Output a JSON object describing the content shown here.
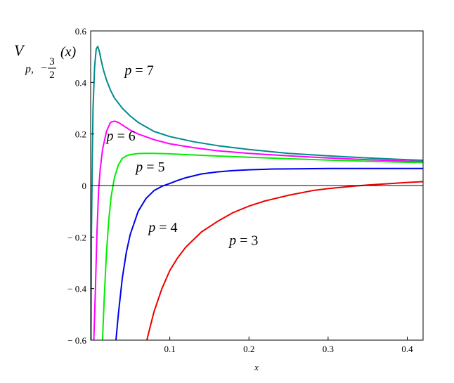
{
  "chart_data": {
    "type": "line",
    "title": "",
    "xlabel": "x",
    "ylabel": {
      "main": "V",
      "sub_p": "p,",
      "sub_sign": "−",
      "sub_num": "3",
      "sub_den": "2",
      "arg": "(x)"
    },
    "xlim": [
      0,
      0.42
    ],
    "ylim": [
      -0.6,
      0.6
    ],
    "grid": false,
    "legend": "inline curve labels",
    "x_ticks": [
      {
        "value": 0.1,
        "label": "0.1"
      },
      {
        "value": 0.2,
        "label": "0.2"
      },
      {
        "value": 0.3,
        "label": "0.3"
      },
      {
        "value": 0.4,
        "label": "0.4"
      }
    ],
    "y_ticks": [
      {
        "value": 0.6,
        "label": "0.6"
      },
      {
        "value": 0.4,
        "label": "0.4"
      },
      {
        "value": 0.2,
        "label": "0.2"
      },
      {
        "value": 0,
        "label": "0"
      },
      {
        "value": -0.2,
        "label": "− 0.2"
      },
      {
        "value": -0.4,
        "label": "− 0.4"
      },
      {
        "value": -0.6,
        "label": "− 0.6"
      }
    ],
    "zero_line": true,
    "series": [
      {
        "name": "p = 7",
        "color": "#008B8B",
        "x": [
          0.0005,
          0.001,
          0.002,
          0.003,
          0.005,
          0.007,
          0.009,
          0.011,
          0.013,
          0.016,
          0.02,
          0.025,
          0.03,
          0.04,
          0.05,
          0.06,
          0.08,
          0.1,
          0.13,
          0.16,
          0.2,
          0.25,
          0.3,
          0.35,
          0.4,
          0.42
        ],
        "y": [
          -0.6,
          -0.2,
          0.1,
          0.3,
          0.46,
          0.53,
          0.54,
          0.52,
          0.49,
          0.45,
          0.41,
          0.37,
          0.34,
          0.3,
          0.27,
          0.245,
          0.21,
          0.19,
          0.17,
          0.155,
          0.14,
          0.125,
          0.115,
          0.107,
          0.1,
          0.098
        ]
      },
      {
        "name": "p = 6",
        "color": "#FF00FF",
        "x": [
          0.004,
          0.006,
          0.008,
          0.01,
          0.012,
          0.015,
          0.02,
          0.025,
          0.03,
          0.035,
          0.04,
          0.05,
          0.06,
          0.08,
          0.1,
          0.13,
          0.16,
          0.2,
          0.25,
          0.3,
          0.35,
          0.4,
          0.42
        ],
        "y": [
          -0.6,
          -0.4,
          -0.18,
          -0.02,
          0.06,
          0.14,
          0.21,
          0.245,
          0.25,
          0.245,
          0.235,
          0.215,
          0.2,
          0.178,
          0.162,
          0.147,
          0.135,
          0.125,
          0.115,
          0.107,
          0.1,
          0.095,
          0.093
        ]
      },
      {
        "name": "p = 5",
        "color": "#00EE00",
        "x": [
          0.015,
          0.017,
          0.02,
          0.023,
          0.026,
          0.03,
          0.035,
          0.04,
          0.045,
          0.05,
          0.06,
          0.07,
          0.08,
          0.1,
          0.12,
          0.15,
          0.2,
          0.25,
          0.3,
          0.35,
          0.4,
          0.42
        ],
        "y": [
          -0.6,
          -0.45,
          -0.26,
          -0.13,
          -0.04,
          0.03,
          0.08,
          0.105,
          0.115,
          0.12,
          0.124,
          0.125,
          0.125,
          0.123,
          0.12,
          0.116,
          0.11,
          0.104,
          0.099,
          0.094,
          0.09,
          0.089
        ]
      },
      {
        "name": "p = 4",
        "color": "#0000EE",
        "x": [
          0.032,
          0.035,
          0.04,
          0.045,
          0.05,
          0.06,
          0.07,
          0.08,
          0.09,
          0.1,
          0.11,
          0.12,
          0.14,
          0.16,
          0.18,
          0.2,
          0.23,
          0.26,
          0.3,
          0.35,
          0.4,
          0.42
        ],
        "y": [
          -0.6,
          -0.5,
          -0.36,
          -0.26,
          -0.19,
          -0.1,
          -0.05,
          -0.02,
          -0.003,
          0.008,
          0.02,
          0.03,
          0.045,
          0.053,
          0.058,
          0.061,
          0.064,
          0.065,
          0.066,
          0.066,
          0.066,
          0.066
        ]
      },
      {
        "name": "p = 3",
        "color": "#EE0000",
        "x": [
          0.071,
          0.075,
          0.08,
          0.09,
          0.1,
          0.11,
          0.12,
          0.14,
          0.16,
          0.18,
          0.2,
          0.22,
          0.25,
          0.28,
          0.3,
          0.33,
          0.35,
          0.38,
          0.4,
          0.42
        ],
        "y": [
          -0.6,
          -0.55,
          -0.49,
          -0.4,
          -0.33,
          -0.28,
          -0.24,
          -0.18,
          -0.14,
          -0.105,
          -0.08,
          -0.06,
          -0.038,
          -0.02,
          -0.012,
          -0.003,
          0.002,
          0.008,
          0.012,
          0.015
        ]
      }
    ],
    "annotations": [
      {
        "series": "p = 7",
        "x": 0.043,
        "y": 0.43
      },
      {
        "series": "p = 6",
        "x": 0.02,
        "y": 0.175
      },
      {
        "series": "p = 5",
        "x": 0.057,
        "y": 0.055
      },
      {
        "series": "p = 4",
        "x": 0.073,
        "y": -0.18
      },
      {
        "series": "p = 3",
        "x": 0.175,
        "y": -0.23
      }
    ]
  }
}
